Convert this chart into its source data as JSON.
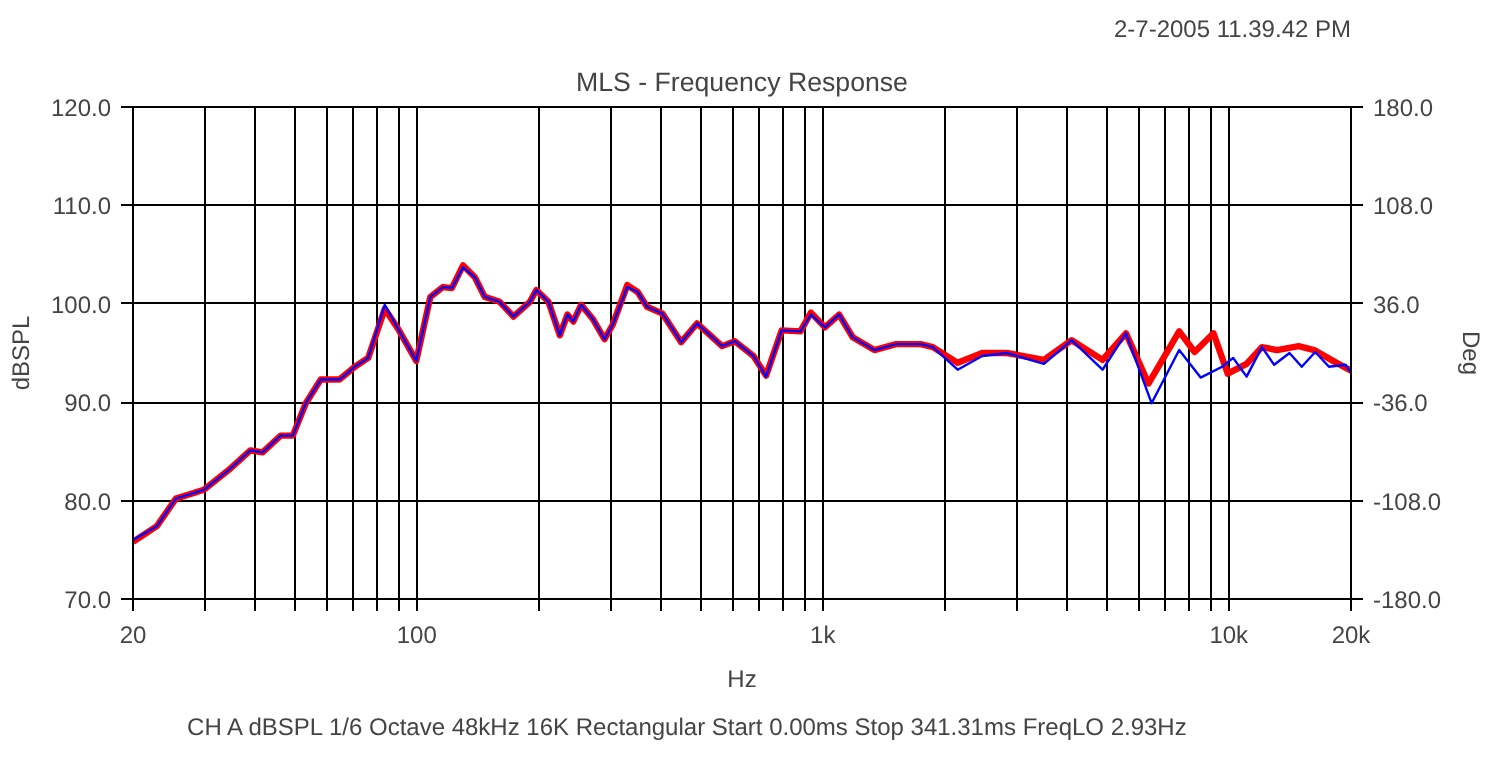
{
  "chart_data": {
    "type": "line",
    "title": "MLS - Frequency Response",
    "subtitle": "2-7-2005 11.39.42 PM",
    "xlabel": "Hz",
    "ylabel": "dBSPL",
    "y2label": "Deg",
    "annotations": [
      "CH A   dBSPL   1/6 Octave   48kHz   16K   Rectangular   Start 0.00ms   Stop 341.31ms   FreqLO 2.93Hz"
    ],
    "log": "x",
    "grid": true,
    "marker": "none",
    "line_style": "solid",
    "xlim": [
      20,
      20000
    ],
    "ylim": [
      70,
      120
    ],
    "y2lim": [
      -180,
      180
    ],
    "xticks": [
      20,
      {
        "value": 30,
        "label": null
      },
      {
        "value": 40,
        "label": null
      },
      {
        "value": 50,
        "label": null
      },
      {
        "value": 60,
        "label": null
      },
      {
        "value": 70,
        "label": null
      },
      {
        "value": 80,
        "label": null
      },
      {
        "value": 90,
        "label": null
      },
      100,
      {
        "value": 200,
        "label": null
      },
      {
        "value": 300,
        "label": null
      },
      {
        "value": 400,
        "label": null
      },
      {
        "value": 500,
        "label": null
      },
      {
        "value": 600,
        "label": null
      },
      {
        "value": 700,
        "label": null
      },
      {
        "value": 800,
        "label": null
      },
      {
        "value": 900,
        "label": null
      },
      {
        "value": 1000,
        "label": "1k"
      },
      {
        "value": 2000,
        "label": null
      },
      {
        "value": 3000,
        "label": null
      },
      {
        "value": 4000,
        "label": null
      },
      {
        "value": 5000,
        "label": null
      },
      {
        "value": 6000,
        "label": null
      },
      {
        "value": 7000,
        "label": null
      },
      {
        "value": 8000,
        "label": null
      },
      {
        "value": 9000,
        "label": null
      },
      {
        "value": 10000,
        "label": "10k"
      },
      {
        "value": 20000,
        "label": "20k"
      }
    ],
    "yticks": [
      {
        "value": 70,
        "label": "70.0"
      },
      {
        "value": 80,
        "label": "80.0"
      },
      {
        "value": 90,
        "label": "90.0"
      },
      {
        "value": 100,
        "label": "100.0"
      },
      {
        "value": 110,
        "label": "110.0"
      },
      {
        "value": 120,
        "label": "120.0"
      }
    ],
    "y2ticks": [
      {
        "value": -180,
        "label": "-180.0"
      },
      {
        "value": -108,
        "label": "-108.0"
      },
      {
        "value": -36,
        "label": "-36.0"
      },
      {
        "value": 36,
        "label": "36.0"
      },
      {
        "value": 108,
        "label": "108.0"
      },
      {
        "value": 180,
        "label": "180.0"
      }
    ],
    "series": [
      {
        "color": "#ff0000",
        "x": [
          20,
          22.9,
          25.5,
          29.9,
          34.4,
          38.9,
          41.7,
          46.2,
          49.5,
          53.3,
          58,
          64.5,
          70.4,
          75.9,
          83.4,
          90.4,
          99.7,
          108,
          116,
          122,
          130,
          139,
          147,
          160,
          173,
          190,
          197,
          211,
          225,
          235,
          243,
          254,
          272,
          290,
          304,
          330,
          350,
          369,
          403,
          448,
          490,
          565,
          607,
          675,
          725,
          792,
          881,
          935,
          1012,
          1097,
          1185,
          1340,
          1515,
          1742,
          1867,
          2149,
          2471,
          2841,
          3506,
          4102,
          4887,
          5582,
          6340,
          7548,
          8241,
          9169,
          9939,
          11064,
          12067,
          13150,
          14860,
          16230,
          18060,
          19390,
          20000
        ],
        "values": [
          75.8,
          77.4,
          80.2,
          81.1,
          83.1,
          85.1,
          84.9,
          86.6,
          86.6,
          89.9,
          92.3,
          92.3,
          93.6,
          94.5,
          99.5,
          97.3,
          94.2,
          100.7,
          101.7,
          101.6,
          103.9,
          102.7,
          100.7,
          100.2,
          98.7,
          100.2,
          101.4,
          100.2,
          96.8,
          98.9,
          98.2,
          99.9,
          98.4,
          96.4,
          97.9,
          101.9,
          101.2,
          99.7,
          99,
          96.1,
          98,
          95.7,
          96.2,
          94.7,
          92.7,
          97.3,
          97.2,
          99.1,
          97.6,
          98.9,
          96.6,
          95.3,
          95.9,
          95.9,
          95.6,
          94,
          95,
          95,
          94.3,
          96.3,
          94.3,
          97,
          91.9,
          97.2,
          95.1,
          97,
          92.9,
          93.9,
          95.6,
          95.3,
          95.7,
          95.3,
          94.2,
          93.5,
          93.2
        ]
      },
      {
        "color": "#0000ff",
        "x": [
          20,
          22.9,
          25.5,
          29.9,
          34.4,
          38.9,
          41.7,
          46.2,
          49.5,
          53.3,
          58,
          64.5,
          70.4,
          75.9,
          83.4,
          90.4,
          99.7,
          108,
          116,
          122,
          130,
          139,
          147,
          160,
          173,
          190,
          197,
          211,
          225,
          235,
          243,
          254,
          272,
          290,
          304,
          330,
          350,
          369,
          403,
          448,
          490,
          565,
          607,
          675,
          725,
          792,
          881,
          935,
          1012,
          1097,
          1185,
          1340,
          1515,
          1742,
          1867,
          2149,
          2471,
          2841,
          3506,
          4102,
          4887,
          5582,
          6455,
          7548,
          8524,
          9631,
          10250,
          11064,
          12067,
          12935,
          14110,
          15125,
          16330,
          17650,
          19390,
          20000
        ],
        "values": [
          76,
          77.4,
          80.2,
          81.1,
          83.1,
          85.1,
          84.9,
          86.6,
          86.6,
          89.9,
          92.3,
          92.3,
          93.6,
          94.5,
          99.9,
          97.3,
          94.2,
          100.7,
          101.7,
          101.6,
          103.7,
          102.7,
          100.7,
          100.2,
          98.7,
          100.2,
          101.4,
          100.2,
          96.8,
          98.9,
          98.2,
          99.9,
          98.4,
          96.4,
          97.9,
          101.7,
          101.2,
          99.7,
          99,
          96.1,
          98,
          95.7,
          96.2,
          94.7,
          92.6,
          97.3,
          97.2,
          98.9,
          97.6,
          98.9,
          96.6,
          95.3,
          95.9,
          95.9,
          95.6,
          93.3,
          94.7,
          95,
          93.9,
          96.3,
          93.3,
          97,
          89.9,
          95.3,
          92.5,
          93.6,
          94.5,
          92.6,
          95.6,
          93.8,
          95,
          93.6,
          95.1,
          93.6,
          93.8,
          93
        ]
      }
    ]
  }
}
